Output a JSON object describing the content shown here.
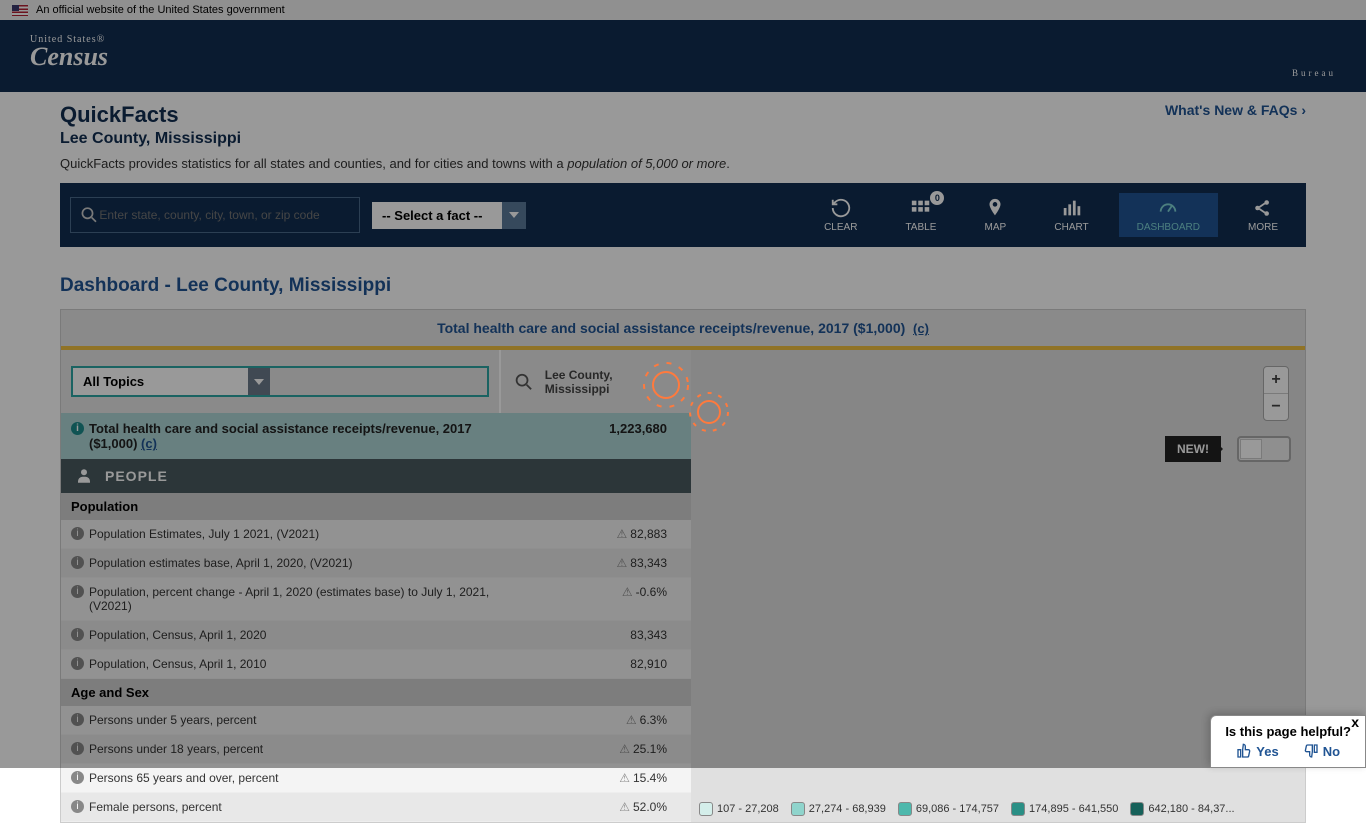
{
  "banner": {
    "text": "An official website of the United States government"
  },
  "logo": {
    "top": "United States®",
    "mid": "Census",
    "bot": "Bureau"
  },
  "header": {
    "title": "QuickFacts",
    "subtitle": "Lee County, Mississippi",
    "description_pre": "QuickFacts provides statistics for all states and counties, and for cities and towns with a ",
    "description_em": "population of 5,000 or more",
    "whatsnew": "What's New & FAQs"
  },
  "toolbar": {
    "search_placeholder": "Enter state, county, city, town, or zip code",
    "select_fact": "-- Select a fact --",
    "buttons": {
      "clear": "CLEAR",
      "table": "TABLE",
      "table_badge": "0",
      "map": "MAP",
      "chart": "CHART",
      "dashboard": "DASHBOARD",
      "more": "MORE"
    }
  },
  "dashboard": {
    "title": "Dashboard - Lee County, Mississippi",
    "header_text": "Total health care and social assistance receipts/revenue, 2017 ($1,000)",
    "header_note": "(c)",
    "topic_selector": "All Topics",
    "county_name": "Lee County, Mississippi",
    "highlighted": {
      "label": "Total health care and social assistance receipts/revenue, 2017 ($1,000)",
      "note": "(c)",
      "value": "1,223,680"
    },
    "section_people": "PEOPLE",
    "subsections": {
      "population": "Population",
      "age_sex": "Age and Sex"
    },
    "rows": [
      {
        "label": "Population Estimates, July 1 2021, (V2021)",
        "value": "82,883",
        "warn": true
      },
      {
        "label": "Population estimates base, April 1, 2020, (V2021)",
        "value": "83,343",
        "warn": true
      },
      {
        "label": "Population, percent change - April 1, 2020 (estimates base) to July 1, 2021, (V2021)",
        "value": "-0.6%",
        "warn": true
      },
      {
        "label": "Population, Census, April 1, 2020",
        "value": "83,343",
        "warn": false
      },
      {
        "label": "Population, Census, April 1, 2010",
        "value": "82,910",
        "warn": false
      }
    ],
    "age_rows": [
      {
        "label": "Persons under 5 years, percent",
        "value": "6.3%",
        "warn": true
      },
      {
        "label": "Persons under 18 years, percent",
        "value": "25.1%",
        "warn": true
      },
      {
        "label": "Persons 65 years and over, percent",
        "value": "15.4%",
        "warn": true
      },
      {
        "label": "Female persons, percent",
        "value": "52.0%",
        "warn": true
      }
    ],
    "new_badge": "NEW!",
    "legend": [
      {
        "range": "107 - 27,208",
        "color": "#d4eeea"
      },
      {
        "range": "27,274 - 68,939",
        "color": "#8fd4cc"
      },
      {
        "range": "69,086 - 174,757",
        "color": "#4db8ac"
      },
      {
        "range": "174,895 - 641,550",
        "color": "#2a8f85"
      },
      {
        "range": "642,180 - 84,37...",
        "color": "#17615a"
      }
    ]
  },
  "feedback": {
    "question": "Is this page helpful?",
    "yes": "Yes",
    "no": "No",
    "close": "x"
  },
  "colors": {
    "navy": "#112e51",
    "blue_link": "#205493",
    "teal_highlight": "#aed6d6",
    "gear_orange": "#ff7a3d"
  }
}
